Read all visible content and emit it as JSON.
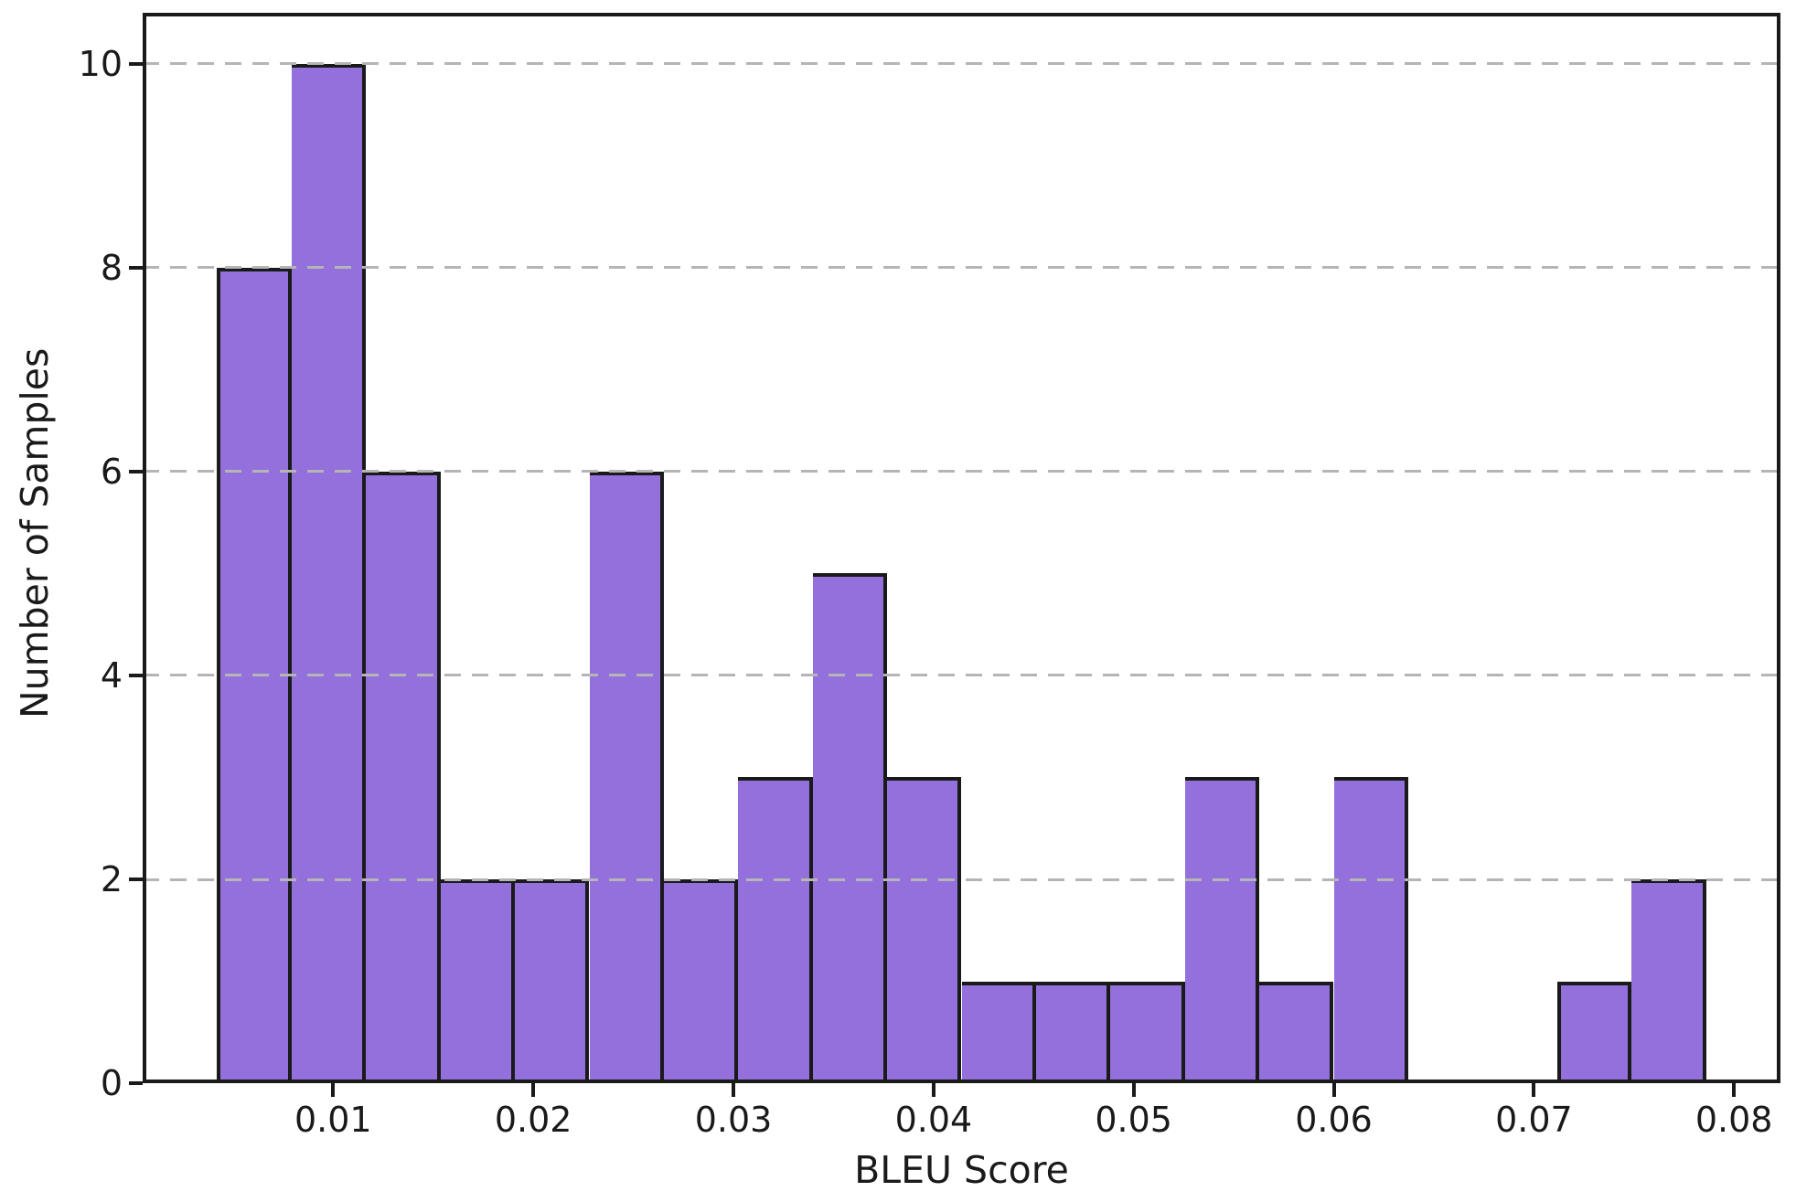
{
  "figure": {
    "background_color": "#ffffff"
  },
  "chart_data": {
    "type": "bar",
    "subtype": "histogram",
    "title": "",
    "xlabel": "BLEU Score",
    "ylabel": "Number of Samples",
    "bin_edges": [
      0.0042,
      0.00792,
      0.01164,
      0.01536,
      0.01908,
      0.0228,
      0.02652,
      0.03024,
      0.03396,
      0.03768,
      0.0414,
      0.04512,
      0.04884,
      0.05256,
      0.05628,
      0.06,
      0.06372,
      0.06744,
      0.07116,
      0.07488,
      0.0786
    ],
    "counts": [
      8,
      10,
      6,
      2,
      2,
      6,
      2,
      3,
      5,
      3,
      1,
      1,
      1,
      3,
      1,
      3,
      0,
      0,
      1,
      2
    ],
    "total_samples": 60,
    "xlim": [
      0.00048,
      0.08232
    ],
    "ylim": [
      0,
      10.5
    ],
    "xticks": [
      0.01,
      0.02,
      0.03,
      0.04,
      0.05,
      0.06,
      0.07,
      0.08
    ],
    "xtick_labels": [
      "0.01",
      "0.02",
      "0.03",
      "0.04",
      "0.05",
      "0.06",
      "0.07",
      "0.08"
    ],
    "yticks": [
      0,
      2,
      4,
      6,
      8,
      10
    ],
    "ytick_labels": [
      "0",
      "2",
      "4",
      "6",
      "8",
      "10"
    ],
    "grid": {
      "axis": "y",
      "line_style": "dashed",
      "drawn_above_bars": true
    },
    "legend": "none",
    "colors": {
      "bar_fill": "#9370DB",
      "bar_edge": "#1a1a1a",
      "grid_line": "#b5b5b5",
      "axis_line": "#1a1a1a",
      "text": "#1a1a1a"
    }
  }
}
